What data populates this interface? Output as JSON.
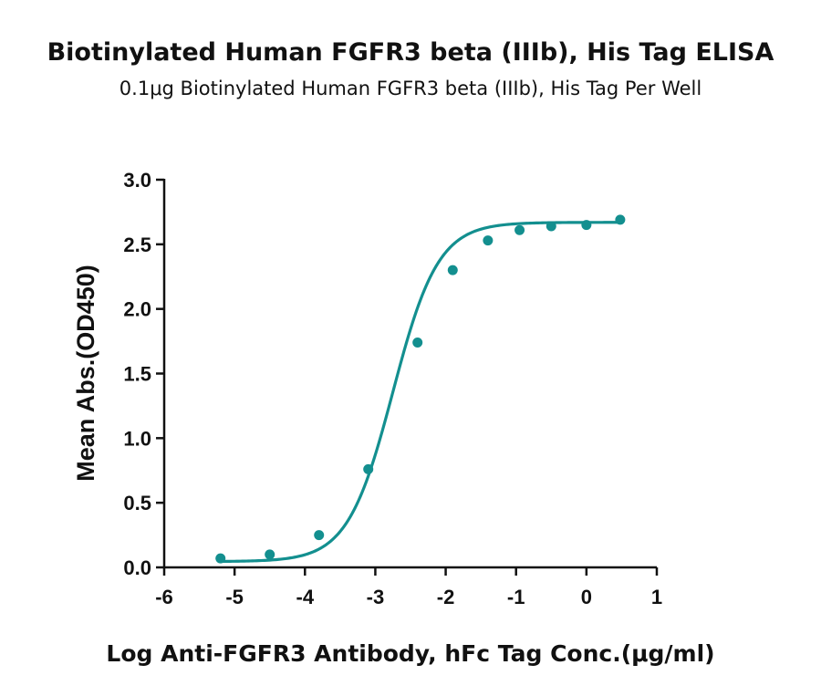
{
  "chart_data": {
    "type": "scatter",
    "title": "Biotinylated Human FGFR3 beta (IIIb), His Tag ELISA",
    "subtitle": "0.1μg Biotinylated Human FGFR3 beta (IIIb), His Tag Per Well",
    "xlabel": "Log Anti-FGFR3 Antibody, hFc Tag Conc.(μg/ml)",
    "ylabel": "Mean Abs.(OD450)",
    "xlim": [
      -6,
      1
    ],
    "ylim": [
      0,
      3.0
    ],
    "x_ticks": [
      "-6",
      "-5",
      "-4",
      "-3",
      "-2",
      "-1",
      "0",
      "1"
    ],
    "y_ticks": [
      "0.0",
      "0.5",
      "1.0",
      "1.5",
      "2.0",
      "2.5",
      "3.0"
    ],
    "grid": false,
    "fitted_curve": true,
    "series": [
      {
        "color": "#138f8f",
        "x": [
          -5.2,
          -4.5,
          -3.8,
          -3.1,
          -2.4,
          -1.9,
          -1.4,
          -0.95,
          -0.5,
          0.0,
          0.48
        ],
        "y": [
          0.07,
          0.1,
          0.25,
          0.76,
          1.74,
          2.3,
          2.53,
          2.61,
          2.64,
          2.65,
          2.69
        ]
      }
    ]
  }
}
